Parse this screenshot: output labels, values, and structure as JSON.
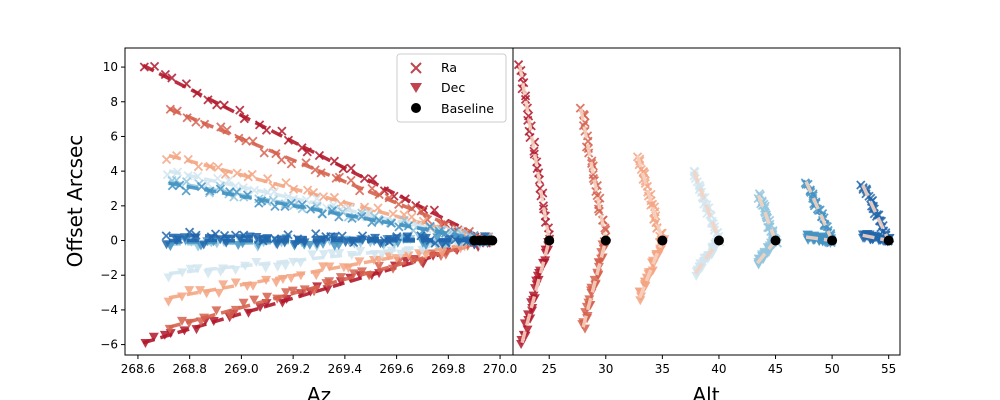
{
  "chart_data": [
    {
      "type": "scatter",
      "panel": "left",
      "xlabel": "Az",
      "ylabel": "Offset Arcsec",
      "xlim": [
        268.55,
        270.05
      ],
      "ylim": [
        -6.6,
        11.1
      ],
      "xticks": [
        "268.6",
        "268.8",
        "269.0",
        "269.2",
        "269.4",
        "269.6",
        "269.8",
        "270.0"
      ],
      "yticks": [
        "10",
        "8",
        "6",
        "4",
        "2",
        "0",
        "−2",
        "−4",
        "−6"
      ],
      "grid": false,
      "legend": {
        "placement": "top-right",
        "entries": [
          "Ra",
          "Dec",
          "Baseline"
        ]
      },
      "series": [
        {
          "group": "alt-25",
          "color": "#b2182b",
          "ra_start": [
            268.62,
            10.1
          ],
          "dec_start": [
            268.62,
            -5.9
          ]
        },
        {
          "group": "alt-30",
          "color": "#d6604d",
          "ra_start": [
            268.72,
            7.6
          ],
          "dec_start": [
            268.72,
            -5.0
          ]
        },
        {
          "group": "alt-35",
          "color": "#f4a582",
          "ra_start": [
            268.72,
            4.9
          ],
          "dec_start": [
            268.72,
            -3.3
          ]
        },
        {
          "group": "alt-40",
          "color": "#d1e5f0",
          "ra_start": [
            268.72,
            4.0
          ],
          "dec_start": [
            268.72,
            -1.9
          ]
        },
        {
          "group": "alt-45",
          "color": "#92c5de",
          "ra_start": [
            268.72,
            3.4
          ],
          "dec_start": [
            268.72,
            -0.2
          ]
        },
        {
          "group": "alt-50",
          "color": "#4393c3",
          "ra_start": [
            268.72,
            3.3
          ],
          "dec_start": [
            268.72,
            -0.1
          ]
        },
        {
          "group": "alt-55",
          "color": "#2166ac",
          "ra_start": [
            268.72,
            0.3
          ],
          "dec_start": [
            268.72,
            0.0
          ]
        }
      ],
      "baseline": {
        "x": [
          269.9,
          269.92,
          269.94,
          269.96,
          269.97
        ],
        "y": [
          0,
          0,
          0,
          0,
          0
        ]
      }
    },
    {
      "type": "scatter",
      "panel": "right",
      "xlabel": "Alt",
      "ylabel": "",
      "xlim": [
        21.8,
        56.0
      ],
      "ylim": [
        -6.6,
        11.1
      ],
      "xticks": [
        "25",
        "30",
        "35",
        "40",
        "45",
        "50",
        "55"
      ],
      "grid": false,
      "series": [
        {
          "group": "alt-25",
          "color": "#b2182b",
          "alt_base": 25,
          "ra_top": [
            22.4,
            10.1
          ],
          "dec_bottom": [
            22.6,
            -5.9
          ]
        },
        {
          "group": "alt-30",
          "color": "#d6604d",
          "alt_base": 30,
          "ra_top": [
            27.8,
            7.6
          ],
          "dec_bottom": [
            28.0,
            -5.0
          ]
        },
        {
          "group": "alt-35",
          "color": "#f4a582",
          "alt_base": 35,
          "ra_top": [
            32.8,
            4.9
          ],
          "dec_bottom": [
            33.0,
            -3.3
          ]
        },
        {
          "group": "alt-40",
          "color": "#d1e5f0",
          "alt_base": 40,
          "ra_top": [
            37.8,
            4.0
          ],
          "dec_bottom": [
            37.9,
            -1.9
          ]
        },
        {
          "group": "alt-45",
          "color": "#92c5de",
          "alt_base": 45,
          "ra_top": [
            43.5,
            2.6
          ],
          "dec_bottom": [
            43.4,
            -1.3
          ]
        },
        {
          "group": "alt-50",
          "color": "#4393c3",
          "alt_base": 50,
          "ra_top": [
            47.7,
            3.4
          ],
          "dec_bottom": [
            47.7,
            0.2
          ]
        },
        {
          "group": "alt-55",
          "color": "#2166ac",
          "alt_base": 55,
          "ra_top": [
            52.7,
            3.2
          ],
          "dec_bottom": [
            52.7,
            0.3
          ]
        }
      ],
      "baseline": {
        "x": [
          25,
          30,
          35,
          40,
          45,
          50,
          55
        ],
        "y": [
          0,
          0,
          0,
          0,
          0,
          0,
          0
        ]
      }
    }
  ]
}
